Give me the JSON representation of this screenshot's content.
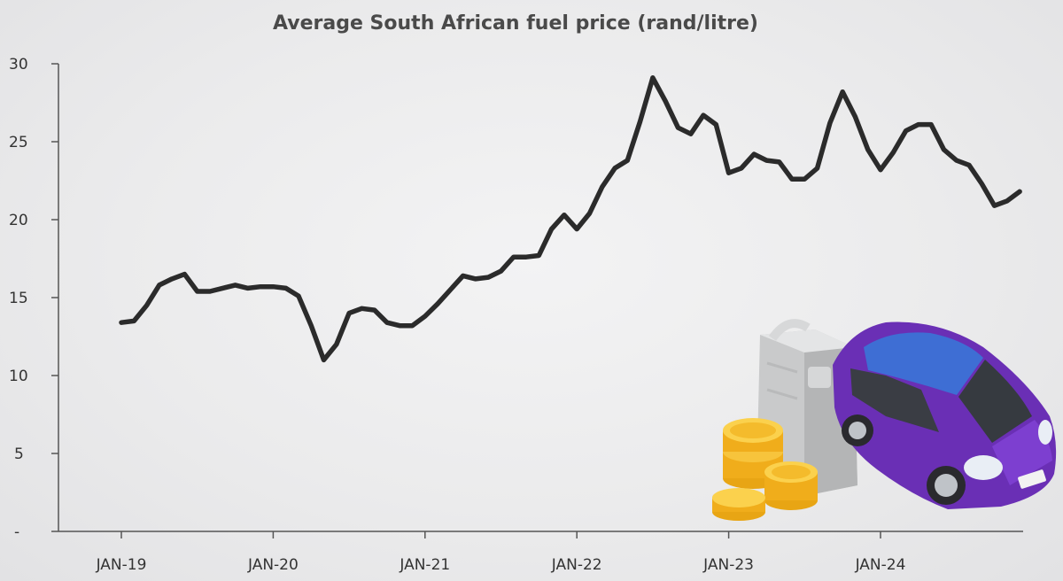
{
  "chart_data": {
    "type": "line",
    "title": "Average South African fuel price (rand/litre)",
    "xlabel": "",
    "ylabel": "",
    "y_ticks": [
      "-",
      "5",
      "10",
      "15",
      "20",
      "25",
      "30"
    ],
    "ylim": [
      0,
      30
    ],
    "x_ticks": [
      {
        "label": "JAN-19",
        "date": "2019-01"
      },
      {
        "label": "JAN-20",
        "date": "2020-01"
      },
      {
        "label": "JAN-21",
        "date": "2021-01"
      },
      {
        "label": "JAN-22",
        "date": "2022-01"
      },
      {
        "label": "JAN-23",
        "date": "2023-01"
      },
      {
        "label": "JAN-24",
        "date": "2024-01"
      }
    ],
    "grid": false,
    "series": [
      {
        "color": "#2b2b2b",
        "points": [
          {
            "x": "2019-01",
            "y": 13.4
          },
          {
            "x": "2019-02",
            "y": 13.5
          },
          {
            "x": "2019-03",
            "y": 14.5
          },
          {
            "x": "2019-04",
            "y": 15.8
          },
          {
            "x": "2019-05",
            "y": 16.2
          },
          {
            "x": "2019-06",
            "y": 16.5
          },
          {
            "x": "2019-07",
            "y": 15.4
          },
          {
            "x": "2019-08",
            "y": 15.4
          },
          {
            "x": "2019-09",
            "y": 15.6
          },
          {
            "x": "2019-10",
            "y": 15.8
          },
          {
            "x": "2019-11",
            "y": 15.6
          },
          {
            "x": "2019-12",
            "y": 15.7
          },
          {
            "x": "2020-01",
            "y": 15.7
          },
          {
            "x": "2020-02",
            "y": 15.6
          },
          {
            "x": "2020-03",
            "y": 15.1
          },
          {
            "x": "2020-04",
            "y": 13.2
          },
          {
            "x": "2020-05",
            "y": 11.0
          },
          {
            "x": "2020-06",
            "y": 12.0
          },
          {
            "x": "2020-07",
            "y": 14.0
          },
          {
            "x": "2020-08",
            "y": 14.3
          },
          {
            "x": "2020-09",
            "y": 14.2
          },
          {
            "x": "2020-10",
            "y": 13.4
          },
          {
            "x": "2020-11",
            "y": 13.2
          },
          {
            "x": "2020-12",
            "y": 13.2
          },
          {
            "x": "2021-01",
            "y": 13.8
          },
          {
            "x": "2021-02",
            "y": 14.6
          },
          {
            "x": "2021-03",
            "y": 15.5
          },
          {
            "x": "2021-04",
            "y": 16.4
          },
          {
            "x": "2021-05",
            "y": 16.2
          },
          {
            "x": "2021-06",
            "y": 16.3
          },
          {
            "x": "2021-07",
            "y": 16.7
          },
          {
            "x": "2021-08",
            "y": 17.6
          },
          {
            "x": "2021-09",
            "y": 17.6
          },
          {
            "x": "2021-10",
            "y": 17.7
          },
          {
            "x": "2021-11",
            "y": 19.4
          },
          {
            "x": "2021-12",
            "y": 20.3
          },
          {
            "x": "2022-01",
            "y": 19.4
          },
          {
            "x": "2022-02",
            "y": 20.4
          },
          {
            "x": "2022-03",
            "y": 22.1
          },
          {
            "x": "2022-04",
            "y": 23.3
          },
          {
            "x": "2022-05",
            "y": 23.8
          },
          {
            "x": "2022-06",
            "y": 26.3
          },
          {
            "x": "2022-07",
            "y": 29.1
          },
          {
            "x": "2022-08",
            "y": 27.6
          },
          {
            "x": "2022-09",
            "y": 25.9
          },
          {
            "x": "2022-10",
            "y": 25.5
          },
          {
            "x": "2022-11",
            "y": 26.7
          },
          {
            "x": "2022-12",
            "y": 26.1
          },
          {
            "x": "2023-01",
            "y": 23.0
          },
          {
            "x": "2023-02",
            "y": 23.3
          },
          {
            "x": "2023-03",
            "y": 24.2
          },
          {
            "x": "2023-04",
            "y": 23.8
          },
          {
            "x": "2023-05",
            "y": 23.7
          },
          {
            "x": "2023-06",
            "y": 22.6
          },
          {
            "x": "2023-07",
            "y": 22.6
          },
          {
            "x": "2023-08",
            "y": 23.3
          },
          {
            "x": "2023-09",
            "y": 26.2
          },
          {
            "x": "2023-10",
            "y": 28.2
          },
          {
            "x": "2023-11",
            "y": 26.6
          },
          {
            "x": "2023-12",
            "y": 24.5
          },
          {
            "x": "2024-01",
            "y": 23.2
          },
          {
            "x": "2024-02",
            "y": 24.3
          },
          {
            "x": "2024-03",
            "y": 25.7
          },
          {
            "x": "2024-04",
            "y": 26.1
          },
          {
            "x": "2024-05",
            "y": 26.1
          },
          {
            "x": "2024-06",
            "y": 24.5
          },
          {
            "x": "2024-07",
            "y": 23.8
          },
          {
            "x": "2024-08",
            "y": 23.5
          },
          {
            "x": "2024-09",
            "y": 22.3
          },
          {
            "x": "2024-10",
            "y": 20.9
          },
          {
            "x": "2024-11",
            "y": 21.2
          },
          {
            "x": "2024-12",
            "y": 21.8
          }
        ]
      }
    ]
  },
  "illustration": {
    "icon_names": [
      "car-icon",
      "jerry-can-icon",
      "coin-stack-icon"
    ],
    "car_color": "#6a2fb5",
    "coin_color": "#f5b82e"
  }
}
